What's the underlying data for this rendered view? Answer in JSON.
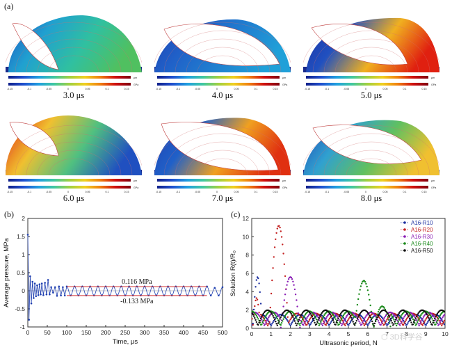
{
  "figure": {
    "label_a": "(a)",
    "panels": [
      {
        "time": "3.0 μs",
        "shape": 0
      },
      {
        "time": "4.0 μs",
        "shape": 1
      },
      {
        "time": "5.0 μs",
        "shape": 2
      },
      {
        "time": "6.0 μs",
        "shape": 3
      },
      {
        "time": "7.0 μs",
        "shape": 4
      },
      {
        "time": "8.0 μs",
        "shape": 5
      }
    ],
    "colorbar_ticks": [
      "-0.15",
      "-0.1",
      "-0.05",
      "0",
      "0.05",
      "0.1",
      "0.15"
    ],
    "colorbar_unit": "GPa",
    "scale_unit": "μm",
    "watermark": "3D科学谷"
  },
  "chart_data": [
    {
      "type": "line",
      "label": "(b)",
      "xlabel": "Time, μs",
      "ylabel": "Average pressure, MPa",
      "xlim": [
        0,
        500
      ],
      "ylim": [
        -1,
        2
      ],
      "xticks": [
        0,
        50,
        100,
        150,
        200,
        250,
        300,
        350,
        400,
        450,
        500
      ],
      "yticks": [
        -1.0,
        -0.5,
        0.0,
        0.5,
        1.0,
        1.5,
        2.0
      ],
      "ytick_labels": [
        "-1",
        "-0.5",
        "0",
        "0.5",
        "1",
        "1.5",
        "2"
      ],
      "series": {
        "x": [
          0,
          3,
          6,
          9,
          12,
          15,
          18,
          21,
          24,
          27,
          30,
          33,
          36,
          40,
          44,
          48,
          52,
          56,
          60,
          65,
          70,
          75,
          80,
          85,
          90,
          95,
          100,
          110,
          120,
          130,
          140,
          150,
          160,
          170,
          180,
          190,
          200,
          210,
          220,
          230,
          240,
          250,
          260,
          270,
          280,
          290,
          300,
          310,
          320,
          330,
          340,
          350,
          360,
          370,
          380,
          390,
          400,
          410,
          420,
          430,
          440,
          450,
          460,
          470,
          480,
          490,
          500
        ],
        "y": [
          1.55,
          -0.8,
          0.4,
          -0.35,
          0.25,
          -0.2,
          0.2,
          -0.15,
          0.15,
          -0.12,
          0.18,
          -0.1,
          0.2,
          -0.12,
          0.22,
          -0.1,
          0.3,
          -0.1,
          0.1,
          -0.05,
          0.1,
          -0.14,
          0.12,
          -0.13,
          0.1,
          -0.13,
          0.12,
          -0.13,
          0.12,
          -0.13,
          0.12,
          -0.13,
          0.12,
          -0.13,
          0.12,
          -0.13,
          0.12,
          -0.13,
          0.12,
          -0.13,
          0.12,
          -0.13,
          0.12,
          -0.13,
          0.12,
          -0.13,
          0.12,
          -0.13,
          0.12,
          -0.13,
          0.12,
          -0.13,
          0.12,
          -0.13,
          0.12,
          -0.13,
          0.12,
          -0.13,
          0.12,
          -0.13,
          0.12,
          -0.13,
          0.12,
          -0.13,
          0.08,
          -0.13,
          0.1
        ]
      },
      "reference_lines": [
        {
          "value": 0.116,
          "label": "0.116 MPa",
          "x_range": [
            100,
            460
          ]
        },
        {
          "value": -0.133,
          "label": "-0.133 MPa",
          "x_range": [
            100,
            460
          ]
        }
      ],
      "colors": {
        "series": "#1f3fb0",
        "reference": "#d23030"
      }
    },
    {
      "type": "scatter",
      "label": "(c)",
      "xlabel": "Ultrasonic period, N",
      "ylabel": "Solution R(t)/R₀",
      "xlim": [
        0,
        10
      ],
      "ylim": [
        0,
        12
      ],
      "xticks": [
        0,
        1,
        2,
        3,
        4,
        5,
        6,
        7,
        8,
        9,
        10
      ],
      "yticks": [
        0,
        2,
        4,
        6,
        8,
        10,
        12
      ],
      "legend_position": "top-right",
      "series": [
        {
          "name": "A16-R10",
          "color": "#1c2fa0",
          "bubbles": [
            [
              0.05,
              0.55,
              5.6
            ]
          ],
          "base": 1.0,
          "period": 1.0
        },
        {
          "name": "A16-R20",
          "color": "#c42020",
          "bubbles": [
            [
              0.9,
              1.9,
              11.2
            ],
            [
              0.05,
              0.45,
              3.3
            ]
          ],
          "base": 1.1,
          "period": 1.0
        },
        {
          "name": "A16-R30",
          "color": "#8a1fb5",
          "bubbles": [
            [
              1.5,
              2.5,
              5.6
            ]
          ],
          "base": 1.2,
          "period": 1.0
        },
        {
          "name": "A16-R40",
          "color": "#1a8a1a",
          "bubbles": [
            [
              5.3,
              6.3,
              5.2
            ],
            [
              6.3,
              7.2,
              2.4
            ]
          ],
          "base": 1.3,
          "period": 1.0
        },
        {
          "name": "A16-R50",
          "color": "#111111",
          "bubbles": [],
          "base": 1.4,
          "period": 1.0
        }
      ]
    }
  ]
}
